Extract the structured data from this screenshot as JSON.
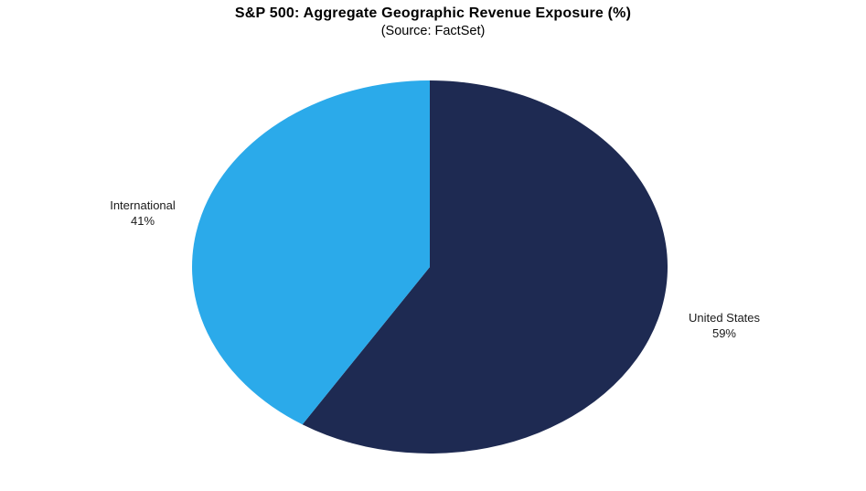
{
  "chart": {
    "title": "S&P 500: Aggregate Geographic Revenue Exposure (%)",
    "subtitle": "(Source: FactSet)"
  },
  "chart_data": {
    "type": "pie",
    "title": "S&P 500: Aggregate Geographic Revenue Exposure (%)",
    "subtitle": "(Source: FactSet)",
    "categories": [
      "United States",
      "International"
    ],
    "values": [
      59,
      41
    ],
    "start_angle_deg": 0,
    "direction": "clockwise",
    "legend": "none",
    "slices": [
      {
        "name": "United States",
        "value": 59,
        "display": "59%",
        "color": "#1E2A52"
      },
      {
        "name": "International",
        "value": 41,
        "display": "41%",
        "color": "#2BAAEA"
      }
    ],
    "background_color": "#ffffff"
  }
}
